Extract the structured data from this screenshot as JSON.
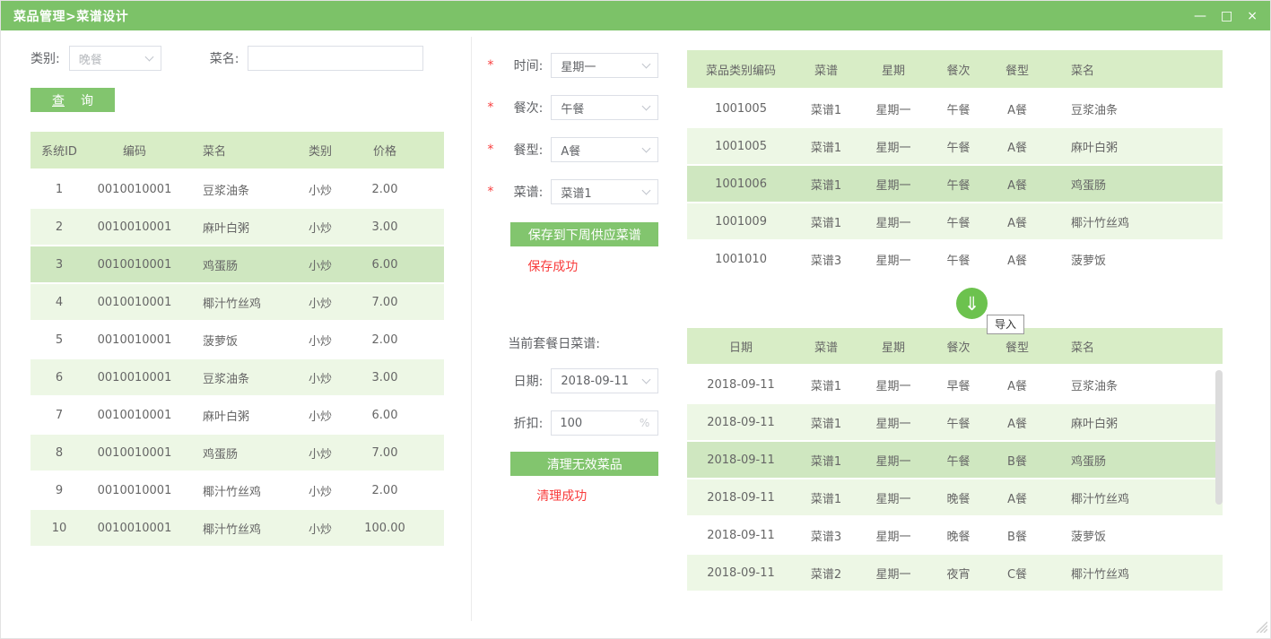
{
  "titlebar": {
    "title": "菜品管理>菜谱设计",
    "minimize_icon": "—",
    "maximize_icon": "□",
    "close_icon": "×"
  },
  "filters": {
    "category_label": "类别:",
    "category_value": "晚餐",
    "dishname_label": "菜名:",
    "dishname_value": "",
    "query_label_char1": "查",
    "query_label_char2": "询"
  },
  "dish_table": {
    "headers": [
      "系统ID",
      "编码",
      "菜名",
      "类别",
      "价格"
    ],
    "rows": [
      [
        "1",
        "0010010001",
        "豆浆油条",
        "小炒",
        "2.00"
      ],
      [
        "2",
        "0010010001",
        "麻叶白粥",
        "小炒",
        "3.00"
      ],
      [
        "3",
        "0010010001",
        "鸡蛋肠",
        "小炒",
        "6.00"
      ],
      [
        "4",
        "0010010001",
        "椰汁竹丝鸡",
        "小炒",
        "7.00"
      ],
      [
        "5",
        "0010010001",
        "菠萝饭",
        "小炒",
        "2.00"
      ],
      [
        "6",
        "0010010001",
        "豆浆油条",
        "小炒",
        "3.00"
      ],
      [
        "7",
        "0010010001",
        "麻叶白粥",
        "小炒",
        "6.00"
      ],
      [
        "8",
        "0010010001",
        "鸡蛋肠",
        "小炒",
        "7.00"
      ],
      [
        "9",
        "0010010001",
        "椰汁竹丝鸡",
        "小炒",
        "2.00"
      ],
      [
        "10",
        "0010010001",
        "椰汁竹丝鸡",
        "小炒",
        "100.00"
      ]
    ],
    "selected_index": 2
  },
  "editor": {
    "required_mark": "*",
    "fields": [
      {
        "label": "时间:",
        "value": "星期一"
      },
      {
        "label": "餐次:",
        "value": "午餐"
      },
      {
        "label": "餐型:",
        "value": "A餐"
      },
      {
        "label": "菜谱:",
        "value": "菜谱1"
      }
    ],
    "save_button": "保存到下周供应菜谱",
    "save_status": "保存成功",
    "section_label": "当前套餐日菜谱:",
    "date_label": "日期:",
    "date_value": "2018-09-11",
    "discount_label": "折扣:",
    "discount_value": "100",
    "discount_unit": "%",
    "clean_button": "清理无效菜品",
    "clean_status": "清理成功"
  },
  "import": {
    "arrow_icon": "⇓",
    "tooltip": "导入"
  },
  "weekly_table": {
    "headers": [
      "菜品类别编码",
      "菜谱",
      "星期",
      "餐次",
      "餐型",
      "菜名"
    ],
    "rows": [
      [
        "1001005",
        "菜谱1",
        "星期一",
        "午餐",
        "A餐",
        "豆浆油条"
      ],
      [
        "1001005",
        "菜谱1",
        "星期一",
        "午餐",
        "A餐",
        "麻叶白粥"
      ],
      [
        "1001006",
        "菜谱1",
        "星期一",
        "午餐",
        "A餐",
        "鸡蛋肠"
      ],
      [
        "1001009",
        "菜谱1",
        "星期一",
        "午餐",
        "A餐",
        "椰汁竹丝鸡"
      ],
      [
        "1001010",
        "菜谱3",
        "星期一",
        "午餐",
        "A餐",
        "菠萝饭"
      ]
    ],
    "selected_index": 2
  },
  "daily_table": {
    "headers": [
      "日期",
      "菜谱",
      "星期",
      "餐次",
      "餐型",
      "菜名"
    ],
    "rows": [
      [
        "2018-09-11",
        "菜谱1",
        "星期一",
        "早餐",
        "A餐",
        "豆浆油条"
      ],
      [
        "2018-09-11",
        "菜谱1",
        "星期一",
        "午餐",
        "A餐",
        "麻叶白粥"
      ],
      [
        "2018-09-11",
        "菜谱1",
        "星期一",
        "午餐",
        "B餐",
        "鸡蛋肠"
      ],
      [
        "2018-09-11",
        "菜谱1",
        "星期一",
        "晚餐",
        "A餐",
        "椰汁竹丝鸡"
      ],
      [
        "2018-09-11",
        "菜谱3",
        "星期一",
        "晚餐",
        "B餐",
        "菠萝饭"
      ],
      [
        "2018-09-11",
        "菜谱2",
        "星期一",
        "夜宵",
        "C餐",
        "椰汁竹丝鸡"
      ]
    ],
    "selected_index": 2
  },
  "colors": {
    "titlebar_green": "#7cc268",
    "button_green": "#82c56e",
    "import_circle_green": "#6cc24e",
    "table_header_green": "#d8edc6",
    "row_alt_green": "#edf7e5",
    "row_selected_green": "#cfe7c0",
    "status_red": "#f83c3c"
  }
}
